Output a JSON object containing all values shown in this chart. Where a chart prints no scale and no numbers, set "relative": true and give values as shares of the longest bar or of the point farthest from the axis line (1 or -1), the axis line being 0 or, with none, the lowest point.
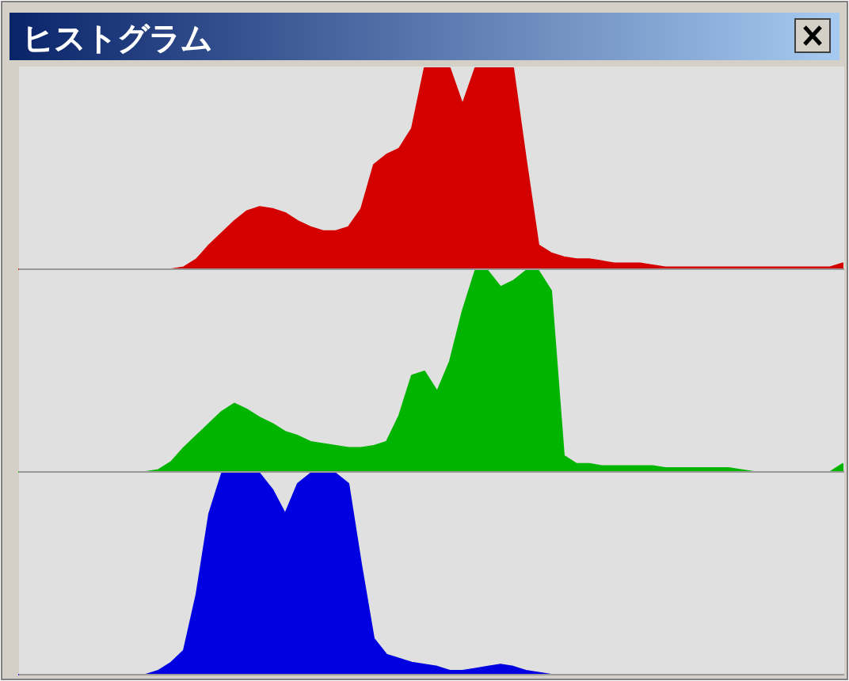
{
  "chart_data": [
    {
      "type": "area",
      "title": "ヒストグラム",
      "relative": true,
      "categories": [
        null,
        null,
        null,
        null,
        null,
        null,
        null,
        null,
        null,
        null,
        null,
        null,
        null,
        null,
        null,
        null,
        null,
        null,
        null,
        null,
        null,
        null,
        null,
        null,
        null,
        null,
        null,
        null,
        null,
        null,
        null,
        null,
        null,
        null,
        null,
        null,
        null,
        null,
        null,
        null,
        null,
        null,
        null,
        null,
        null,
        null,
        null,
        null,
        null,
        null,
        null,
        null,
        null,
        null,
        null,
        null,
        null,
        null,
        null,
        null,
        null,
        null,
        null,
        null,
        null,
        null
      ],
      "series": [
        {
          "color": "#d40000",
          "values": [
            0,
            0,
            0,
            0,
            0,
            0,
            0,
            0,
            0,
            0,
            0,
            0,
            0,
            0.01,
            0.05,
            0.12,
            0.18,
            0.24,
            0.29,
            0.31,
            0.3,
            0.28,
            0.24,
            0.21,
            0.19,
            0.19,
            0.21,
            0.3,
            0.52,
            0.57,
            0.6,
            0.7,
            1,
            1,
            1,
            0.82,
            1,
            1,
            1,
            1,
            0.55,
            0.12,
            0.08,
            0.06,
            0.05,
            0.05,
            0.04,
            0.03,
            0.03,
            0.03,
            0.02,
            0.01,
            0.01,
            0.01,
            0.01,
            0.01,
            0.01,
            0.01,
            0.01,
            0.01,
            0.01,
            0.01,
            0.01,
            0.01,
            0.01,
            0.03
          ]
        }
      ]
    },
    {
      "type": "area",
      "relative": true,
      "categories": [
        null,
        null,
        null,
        null,
        null,
        null,
        null,
        null,
        null,
        null,
        null,
        null,
        null,
        null,
        null,
        null,
        null,
        null,
        null,
        null,
        null,
        null,
        null,
        null,
        null,
        null,
        null,
        null,
        null,
        null,
        null,
        null,
        null,
        null,
        null,
        null,
        null,
        null,
        null,
        null,
        null,
        null,
        null,
        null,
        null,
        null,
        null,
        null,
        null,
        null,
        null,
        null,
        null,
        null,
        null,
        null,
        null,
        null,
        null,
        null,
        null,
        null,
        null,
        null,
        null,
        null
      ],
      "series": [
        {
          "color": "#00b400",
          "values": [
            0,
            0,
            0,
            0,
            0,
            0,
            0,
            0,
            0,
            0,
            0,
            0.01,
            0.05,
            0.12,
            0.18,
            0.24,
            0.3,
            0.34,
            0.31,
            0.27,
            0.24,
            0.2,
            0.18,
            0.15,
            0.14,
            0.13,
            0.12,
            0.12,
            0.13,
            0.15,
            0.28,
            0.48,
            0.5,
            0.4,
            0.55,
            0.8,
            1,
            1,
            0.92,
            0.95,
            1,
            1,
            0.9,
            0.08,
            0.04,
            0.04,
            0.03,
            0.03,
            0.03,
            0.03,
            0.03,
            0.02,
            0.02,
            0.02,
            0.02,
            0.02,
            0.02,
            0.01,
            0,
            0,
            0,
            0,
            0,
            0,
            0,
            0.04
          ]
        }
      ]
    },
    {
      "type": "area",
      "relative": true,
      "categories": [
        null,
        null,
        null,
        null,
        null,
        null,
        null,
        null,
        null,
        null,
        null,
        null,
        null,
        null,
        null,
        null,
        null,
        null,
        null,
        null,
        null,
        null,
        null,
        null,
        null,
        null,
        null,
        null,
        null,
        null,
        null,
        null,
        null,
        null,
        null,
        null,
        null,
        null,
        null,
        null,
        null,
        null,
        null,
        null,
        null,
        null,
        null,
        null,
        null,
        null,
        null,
        null,
        null,
        null,
        null,
        null,
        null,
        null,
        null,
        null,
        null,
        null,
        null,
        null,
        null,
        null
      ],
      "series": [
        {
          "color": "#0000e0",
          "values": [
            0,
            0,
            0,
            0,
            0,
            0,
            0,
            0,
            0,
            0,
            0,
            0.02,
            0.06,
            0.12,
            0.4,
            0.8,
            1,
            1,
            1,
            1,
            0.92,
            0.8,
            0.95,
            1,
            1,
            1,
            0.95,
            0.55,
            0.18,
            0.1,
            0.08,
            0.06,
            0.05,
            0.04,
            0.02,
            0.02,
            0.03,
            0.04,
            0.05,
            0.04,
            0.02,
            0.01,
            0,
            0,
            0,
            0,
            0,
            0,
            0,
            0,
            0,
            0,
            0,
            0,
            0,
            0,
            0,
            0,
            0,
            0,
            0,
            0,
            0,
            0,
            0,
            0
          ]
        }
      ]
    }
  ]
}
